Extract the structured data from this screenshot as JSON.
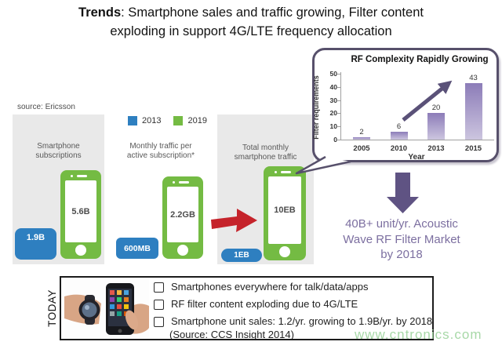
{
  "title": {
    "bold": "Trends",
    "line1_rest": ": Smartphone sales and traffic growing, Filter content",
    "line2": "exploding in support 4G/LTE frequency allocation"
  },
  "source_note": "source: Ericsson",
  "legend": {
    "items": [
      {
        "label": "2013",
        "color": "#2E7FC0"
      },
      {
        "label": "2019",
        "color": "#74BB43"
      }
    ]
  },
  "panels": [
    {
      "label_line1": "Smartphone",
      "label_line2": "subscriptions",
      "phone_value_2019": "5.6B",
      "badge_2013": "1.9B"
    },
    {
      "label_line1": "Monthly traffic per",
      "label_line2": "active subscription*",
      "phone_value_2019": "2.2GB",
      "badge_2013": "600MB"
    },
    {
      "label_line1": "Total monthly",
      "label_line2": "smartphone traffic",
      "phone_value_2019": "10EB",
      "badge_2013": "1EB"
    }
  ],
  "chart_data": {
    "type": "bar",
    "title": "RF Complexity Rapidly Growing",
    "categories": [
      "2005",
      "2010",
      "2013",
      "2015"
    ],
    "values": [
      2,
      6,
      20,
      43
    ],
    "xlabel": "Year",
    "ylabel": "Filter requirements",
    "ylim": [
      0,
      50
    ],
    "yticks": [
      0,
      10,
      20,
      30,
      40,
      50
    ],
    "grid": false,
    "legend_position": "none",
    "bar_color_top": "#8C7CB8",
    "bar_color_bottom": "#CCC5DF",
    "annotation": "rising trend arrow from 2010 bar toward 2015 value"
  },
  "market_callout": {
    "line1": "40B+ unit/yr. Acoustic",
    "line2": "Wave RF Filter Market",
    "line3": "by 2018",
    "color": "#7C6FA0"
  },
  "today_box": {
    "side_label": "TODAY",
    "bullets": [
      "Smartphones everywhere for talk/data/apps",
      "RF filter content exploding due to 4G/LTE",
      "Smartphone unit sales: 1.2/yr. growing to 1.9B/yr. by 2018"
    ],
    "source": "(Source: CCS Insight 2014)"
  },
  "watermark": "www.cntronics.com",
  "colors": {
    "blue_2013": "#2E7FC0",
    "green_2019": "#74BB43",
    "red_arrow": "#C5232B",
    "purple_dark": "#57506B",
    "purple_text": "#7C6FA0",
    "panel_gray": "#E9E9E9"
  }
}
